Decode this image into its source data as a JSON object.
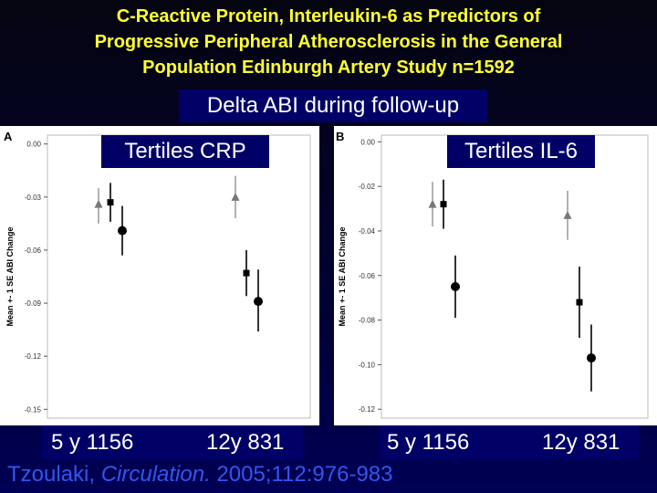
{
  "title": {
    "line1": "C-Reactive Protein, Interleukin-6 as Predictors of",
    "line2": "Progressive Peripheral Atherosclerosis in the General",
    "line3": "Population  Edinburgh Artery Study n=1592"
  },
  "subtitle": "Delta ABI during follow-up",
  "panels": [
    {
      "tertile_label": "Tertiles  CRP",
      "bottom_left": "5 y 1156",
      "bottom_right": "12y 831"
    },
    {
      "tertile_label": "Tertiles IL-6",
      "bottom_left": "5 y 1156",
      "bottom_right": "12y 831"
    }
  ],
  "citation": {
    "author": "Tzoulaki, ",
    "journal": "Circulation.",
    "ref": " 2005;112:976-983"
  },
  "colors": {
    "title": "#ffff33",
    "label_box": "#000066",
    "citation": "#3355ee"
  },
  "chart_data": [
    {
      "type": "scatter",
      "panel_letter": "A",
      "ylabel": "Mean +- 1 SE ABI Change",
      "ylim": [
        -0.155,
        0.005
      ],
      "yticks": [
        "0.00",
        "-0.03",
        "-0.06",
        "-0.09",
        "-0.12",
        "-0.15"
      ],
      "ytick_values": [
        0.0,
        -0.03,
        -0.06,
        -0.09,
        -0.12,
        -0.15
      ],
      "groups": [
        {
          "points": [
            {
              "marker": "triangle",
              "mean": -0.034,
              "se_low": -0.045,
              "se_high": -0.025
            },
            {
              "marker": "square",
              "mean": -0.033,
              "se_low": -0.044,
              "se_high": -0.022
            },
            {
              "marker": "circle",
              "mean": -0.049,
              "se_low": -0.063,
              "se_high": -0.035
            }
          ]
        },
        {
          "points": [
            {
              "marker": "triangle",
              "mean": -0.03,
              "se_low": -0.042,
              "se_high": -0.018
            },
            {
              "marker": "square",
              "mean": -0.073,
              "se_low": -0.086,
              "se_high": -0.06
            },
            {
              "marker": "circle",
              "mean": -0.089,
              "se_low": -0.106,
              "se_high": -0.071
            }
          ]
        }
      ]
    },
    {
      "type": "scatter",
      "panel_letter": "B",
      "ylabel": "Mean +- 1 SE ABI Change",
      "ylim": [
        -0.124,
        0.003
      ],
      "yticks": [
        "0.00",
        "-0.02",
        "-0.04",
        "-0.06",
        "-0.08",
        "-0.10",
        "-0.12"
      ],
      "ytick_values": [
        0.0,
        -0.02,
        -0.04,
        -0.06,
        -0.08,
        -0.1,
        -0.12
      ],
      "groups": [
        {
          "points": [
            {
              "marker": "triangle",
              "mean": -0.028,
              "se_low": -0.038,
              "se_high": -0.018
            },
            {
              "marker": "square",
              "mean": -0.028,
              "se_low": -0.039,
              "se_high": -0.017
            },
            {
              "marker": "circle",
              "mean": -0.065,
              "se_low": -0.079,
              "se_high": -0.051
            }
          ]
        },
        {
          "points": [
            {
              "marker": "triangle",
              "mean": -0.033,
              "se_low": -0.044,
              "se_high": -0.022
            },
            {
              "marker": "square",
              "mean": -0.072,
              "se_low": -0.088,
              "se_high": -0.056
            },
            {
              "marker": "circle",
              "mean": -0.097,
              "se_low": -0.112,
              "se_high": -0.082
            }
          ]
        }
      ]
    }
  ]
}
